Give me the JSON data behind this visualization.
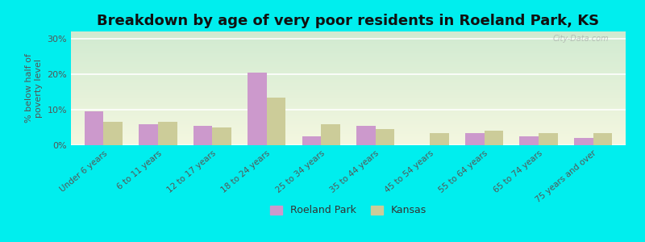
{
  "title": "Breakdown by age of very poor residents in Roeland Park, KS",
  "categories": [
    "Under 6 years",
    "6 to 11 years",
    "12 to 17 years",
    "18 to 24 years",
    "25 to 34 years",
    "35 to 44 years",
    "45 to 54 years",
    "55 to 64 years",
    "65 to 74 years",
    "75 years and over"
  ],
  "roeland_park": [
    9.5,
    6.0,
    5.5,
    20.5,
    2.5,
    5.5,
    0.0,
    3.5,
    2.5,
    2.0
  ],
  "kansas": [
    6.5,
    6.5,
    5.0,
    13.5,
    6.0,
    4.5,
    3.5,
    4.0,
    3.5,
    3.5
  ],
  "roeland_color": "#cc99cc",
  "kansas_color": "#cccc99",
  "ylabel": "% below half of\npoverty level",
  "ylim": [
    0,
    32
  ],
  "yticks": [
    0,
    10,
    20,
    30
  ],
  "ytick_labels": [
    "0%",
    "10%",
    "20%",
    "30%"
  ],
  "bg_color": "#00eeee",
  "bar_width": 0.35,
  "title_fontsize": 13,
  "watermark": "City-Data.com",
  "legend_roeland": "Roeland Park",
  "legend_kansas": "Kansas"
}
